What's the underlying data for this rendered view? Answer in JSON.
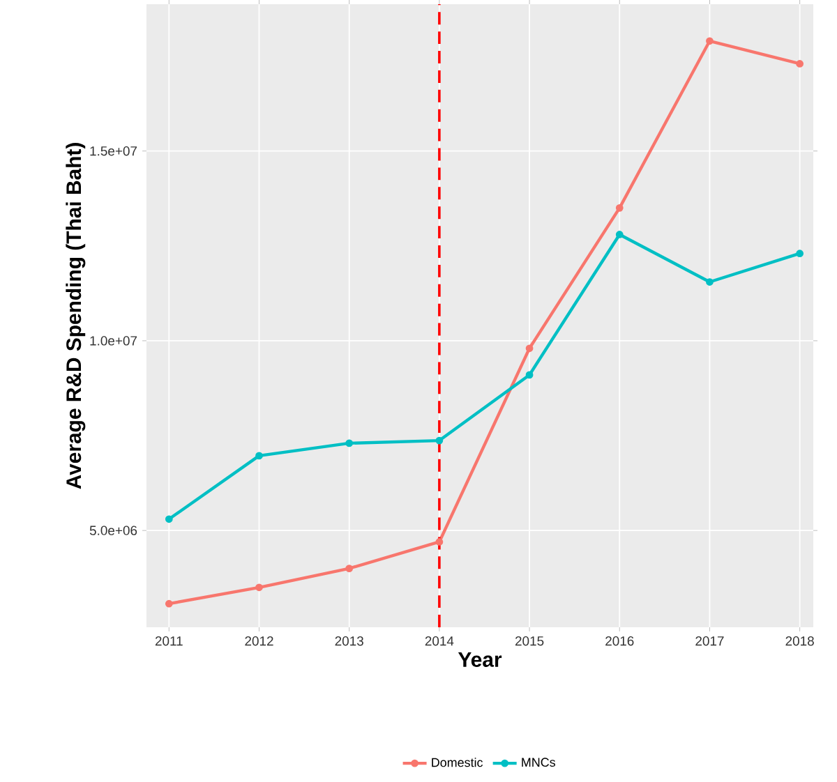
{
  "chart_data": {
    "type": "line",
    "xlabel": "Year",
    "ylabel": "Average R&D Spending (Thai Baht)",
    "x": [
      2011,
      2012,
      2013,
      2014,
      2015,
      2016,
      2017,
      2018
    ],
    "series": [
      {
        "name": "Domestic",
        "color": "#f8766d",
        "values": [
          3070000,
          3500000,
          4000000,
          4700000,
          9800000,
          13500000,
          17900000,
          17300000
        ]
      },
      {
        "name": "MNCs",
        "color": "#00bfc4",
        "values": [
          5300000,
          6970000,
          7300000,
          7370000,
          9100000,
          12800000,
          11550000,
          12300000
        ]
      }
    ],
    "xlim": [
      2010.75,
      2018.15
    ],
    "ylim": [
      2450000,
      18870000
    ],
    "xticks": [
      2011,
      2012,
      2013,
      2014,
      2015,
      2016,
      2017,
      2018
    ],
    "yticks": [
      {
        "value": 5000000,
        "label": "5.0e+06"
      },
      {
        "value": 10000000,
        "label": "1.0e+07"
      },
      {
        "value": 15000000,
        "label": "1.5e+07"
      }
    ],
    "ref_lines": [
      {
        "axis": "x",
        "value": 2014,
        "color": "#ff0000",
        "line_style": "dashed"
      }
    ],
    "grid": true,
    "legend": "bottom",
    "marker": "circle",
    "line_style": "solid"
  }
}
